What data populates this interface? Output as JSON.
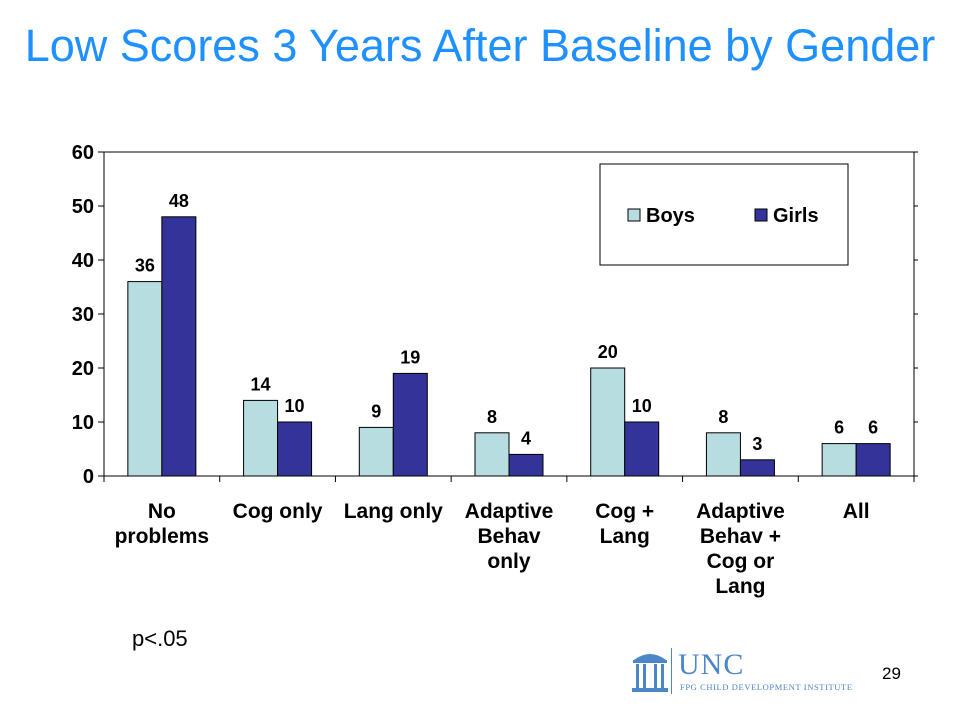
{
  "slide": {
    "title": "Low Scores 3 Years After Baseline by Gender",
    "footnote": "p<.05",
    "page_number": "29"
  },
  "logo": {
    "name": "UNC",
    "subtitle": "FPG CHILD DEVELOPMENT INSTITUTE",
    "icon": "old-well-icon"
  },
  "colors": {
    "boys": "#b8dde0",
    "girls": "#333399",
    "title": "#1e90ff",
    "logo": "#4b86c6"
  },
  "chart_data": {
    "type": "bar",
    "categories": [
      [
        "No",
        "problems"
      ],
      [
        "Cog only"
      ],
      [
        "Lang only"
      ],
      [
        "Adaptive",
        "Behav",
        "only"
      ],
      [
        "Cog +",
        "Lang"
      ],
      [
        "Adaptive",
        "Behav +",
        "Cog or",
        "Lang"
      ],
      [
        "All"
      ]
    ],
    "series": [
      {
        "name": "Boys",
        "values": [
          36,
          14,
          9,
          8,
          20,
          8,
          6
        ]
      },
      {
        "name": "Girls",
        "values": [
          48,
          10,
          19,
          4,
          10,
          3,
          6
        ]
      }
    ],
    "data_labels": {
      "Boys": [
        "36",
        "14",
        "9",
        "8",
        "20",
        "8",
        "6"
      ],
      "Girls": [
        "48",
        "10",
        "19",
        "4",
        "10",
        "3",
        "6"
      ]
    },
    "ylim": [
      0,
      60
    ],
    "yticks": [
      0,
      10,
      20,
      30,
      40,
      50,
      60
    ],
    "ytick_labels": [
      "0",
      "10",
      "20",
      "30",
      "40",
      "50",
      "60"
    ],
    "grid": false,
    "legend": "top-right"
  }
}
